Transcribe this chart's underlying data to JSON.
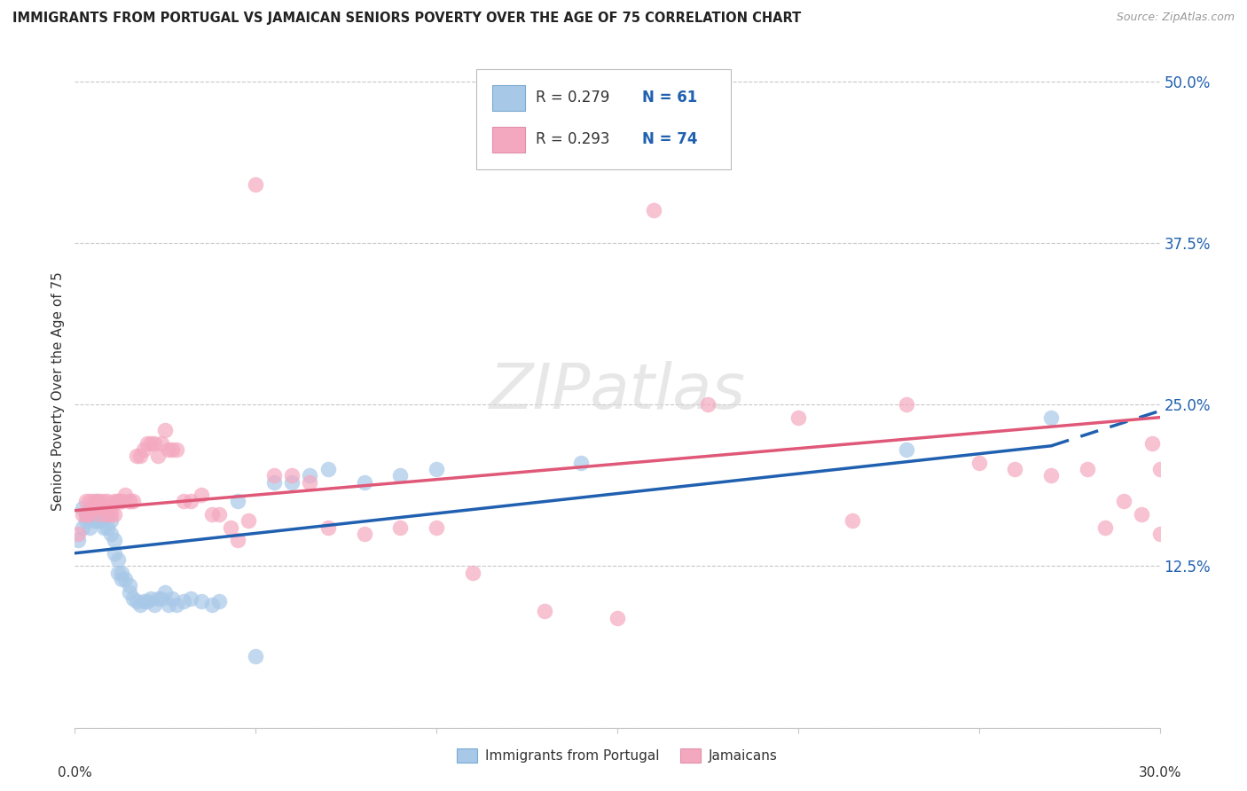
{
  "title": "IMMIGRANTS FROM PORTUGAL VS JAMAICAN SENIORS POVERTY OVER THE AGE OF 75 CORRELATION CHART",
  "source": "Source: ZipAtlas.com",
  "ylabel": "Seniors Poverty Over the Age of 75",
  "xlim": [
    0.0,
    0.3
  ],
  "ylim": [
    0.0,
    0.52
  ],
  "yticks": [
    0.0,
    0.125,
    0.25,
    0.375,
    0.5
  ],
  "ytick_labels": [
    "",
    "12.5%",
    "25.0%",
    "37.5%",
    "50.0%"
  ],
  "xtick_positions": [
    0.0,
    0.05,
    0.1,
    0.15,
    0.2,
    0.25,
    0.3
  ],
  "legend_label1": "R = 0.279",
  "legend_n1": "N = 61",
  "legend_label2": "R = 0.293",
  "legend_n2": "N = 74",
  "color_blue": "#A8C8E8",
  "color_pink": "#F4A8C0",
  "line_blue": "#2060B0",
  "line_pink": "#E05878",
  "blue_scatter_x": [
    0.001,
    0.002,
    0.002,
    0.003,
    0.003,
    0.004,
    0.004,
    0.005,
    0.005,
    0.005,
    0.006,
    0.006,
    0.006,
    0.007,
    0.007,
    0.007,
    0.008,
    0.008,
    0.009,
    0.009,
    0.01,
    0.01,
    0.011,
    0.011,
    0.012,
    0.012,
    0.013,
    0.013,
    0.014,
    0.015,
    0.015,
    0.016,
    0.017,
    0.018,
    0.019,
    0.02,
    0.021,
    0.022,
    0.023,
    0.024,
    0.025,
    0.026,
    0.027,
    0.028,
    0.03,
    0.032,
    0.035,
    0.038,
    0.04,
    0.045,
    0.05,
    0.055,
    0.06,
    0.065,
    0.07,
    0.08,
    0.09,
    0.1,
    0.14,
    0.23,
    0.27
  ],
  "blue_scatter_y": [
    0.145,
    0.155,
    0.17,
    0.16,
    0.165,
    0.17,
    0.155,
    0.165,
    0.16,
    0.17,
    0.165,
    0.175,
    0.16,
    0.165,
    0.17,
    0.16,
    0.165,
    0.155,
    0.165,
    0.155,
    0.16,
    0.15,
    0.145,
    0.135,
    0.13,
    0.12,
    0.12,
    0.115,
    0.115,
    0.11,
    0.105,
    0.1,
    0.098,
    0.095,
    0.098,
    0.098,
    0.1,
    0.095,
    0.1,
    0.1,
    0.105,
    0.095,
    0.1,
    0.095,
    0.098,
    0.1,
    0.098,
    0.095,
    0.098,
    0.175,
    0.055,
    0.19,
    0.19,
    0.195,
    0.2,
    0.19,
    0.195,
    0.2,
    0.205,
    0.215,
    0.24
  ],
  "pink_scatter_x": [
    0.001,
    0.002,
    0.003,
    0.003,
    0.004,
    0.004,
    0.005,
    0.005,
    0.006,
    0.006,
    0.007,
    0.007,
    0.008,
    0.008,
    0.009,
    0.009,
    0.01,
    0.01,
    0.011,
    0.011,
    0.012,
    0.012,
    0.013,
    0.013,
    0.014,
    0.015,
    0.015,
    0.016,
    0.017,
    0.018,
    0.019,
    0.02,
    0.021,
    0.022,
    0.023,
    0.024,
    0.025,
    0.026,
    0.027,
    0.028,
    0.03,
    0.032,
    0.035,
    0.038,
    0.04,
    0.043,
    0.045,
    0.048,
    0.05,
    0.055,
    0.06,
    0.065,
    0.07,
    0.08,
    0.09,
    0.1,
    0.11,
    0.13,
    0.15,
    0.16,
    0.175,
    0.2,
    0.215,
    0.23,
    0.25,
    0.26,
    0.27,
    0.28,
    0.285,
    0.29,
    0.295,
    0.298,
    0.3,
    0.3
  ],
  "pink_scatter_y": [
    0.15,
    0.165,
    0.175,
    0.165,
    0.175,
    0.165,
    0.17,
    0.175,
    0.175,
    0.17,
    0.175,
    0.165,
    0.17,
    0.175,
    0.175,
    0.165,
    0.17,
    0.165,
    0.175,
    0.165,
    0.175,
    0.175,
    0.175,
    0.175,
    0.18,
    0.175,
    0.175,
    0.175,
    0.21,
    0.21,
    0.215,
    0.22,
    0.22,
    0.22,
    0.21,
    0.22,
    0.23,
    0.215,
    0.215,
    0.215,
    0.175,
    0.175,
    0.18,
    0.165,
    0.165,
    0.155,
    0.145,
    0.16,
    0.42,
    0.195,
    0.195,
    0.19,
    0.155,
    0.15,
    0.155,
    0.155,
    0.12,
    0.09,
    0.085,
    0.4,
    0.25,
    0.24,
    0.16,
    0.25,
    0.205,
    0.2,
    0.195,
    0.2,
    0.155,
    0.175,
    0.165,
    0.22,
    0.15,
    0.2
  ],
  "blue_line_x0": 0.0,
  "blue_line_x_solid_end": 0.27,
  "blue_line_x1": 0.3,
  "blue_line_y0": 0.135,
  "blue_line_y_solid_end": 0.218,
  "blue_line_y1": 0.245,
  "pink_line_x0": 0.0,
  "pink_line_x1": 0.3,
  "pink_line_y0": 0.168,
  "pink_line_y1": 0.24,
  "background_color": "#FFFFFF",
  "grid_color": "#C8C8C8",
  "watermark_text": "ZIPatlas",
  "watermark_color": "#D8D8D8",
  "bottom_label1": "Immigrants from Portugal",
  "bottom_label2": "Jamaicans"
}
